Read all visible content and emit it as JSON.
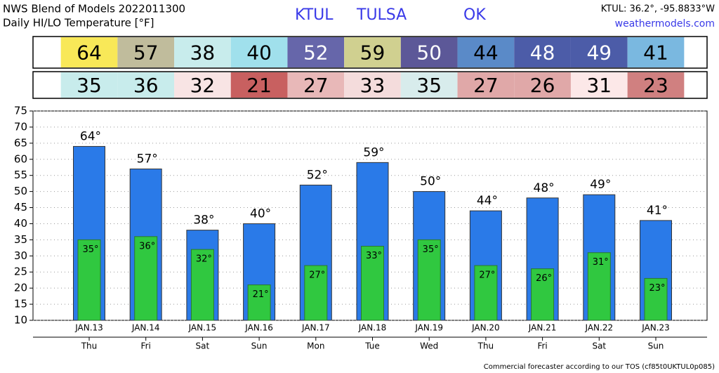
{
  "chart_data": {
    "type": "bar",
    "title": "NWS Blend of Models 2022011300",
    "subtitle": "Daily HI/LO Temperature [°F]",
    "station": "KTUL",
    "city": "TULSA",
    "state": "OK",
    "coordinates": "KTUL: 36.2°, -95.8833°W",
    "site": "weathermodels.com",
    "footer": "Commercial forecaster according to our TOS (cf85t0UKTUL0p085)",
    "categories": [
      "JAN.13",
      "JAN.14",
      "JAN.15",
      "JAN.16",
      "JAN.17",
      "JAN.18",
      "JAN.19",
      "JAN.20",
      "JAN.21",
      "JAN.22",
      "JAN.23"
    ],
    "days": [
      "Thu",
      "Fri",
      "Sat",
      "Sun",
      "Mon",
      "Tue",
      "Wed",
      "Thu",
      "Fri",
      "Sat",
      "Sun"
    ],
    "high": {
      "color": "#2a7ae8",
      "values": [
        64,
        57,
        38,
        40,
        52,
        59,
        50,
        44,
        48,
        49,
        41
      ],
      "value_labels": [
        "64°",
        "57°",
        "38°",
        "40°",
        "52°",
        "59°",
        "50°",
        "44°",
        "48°",
        "49°",
        "41°"
      ],
      "cell_colors": [
        "#f8e858",
        "#c0bc9c",
        "#c8ecec",
        "#a0e0ec",
        "#6666aa",
        "#d0d090",
        "#5c5898",
        "#5a8ac8",
        "#4c5ca8",
        "#4c5ca8",
        "#7ab8e0"
      ]
    },
    "low": {
      "color": "#30c840",
      "values": [
        35,
        36,
        32,
        21,
        27,
        33,
        35,
        27,
        26,
        31,
        23
      ],
      "value_labels": [
        "35°",
        "36°",
        "32°",
        "21°",
        "27°",
        "33°",
        "35°",
        "27°",
        "26°",
        "31°",
        "23°"
      ],
      "cell_colors": [
        "#c8ecec",
        "#c8ecec",
        "#f8e4e4",
        "#c86060",
        "#e8b8b8",
        "#f4dcdc",
        "#d8ecec",
        "#e0a8a8",
        "#e0a8a8",
        "#fce8e8",
        "#d08080"
      ]
    },
    "ylim": [
      10,
      75
    ],
    "yticks": [
      10,
      15,
      20,
      25,
      30,
      35,
      40,
      45,
      50,
      55,
      60,
      65,
      70,
      75
    ],
    "grid": true
  }
}
